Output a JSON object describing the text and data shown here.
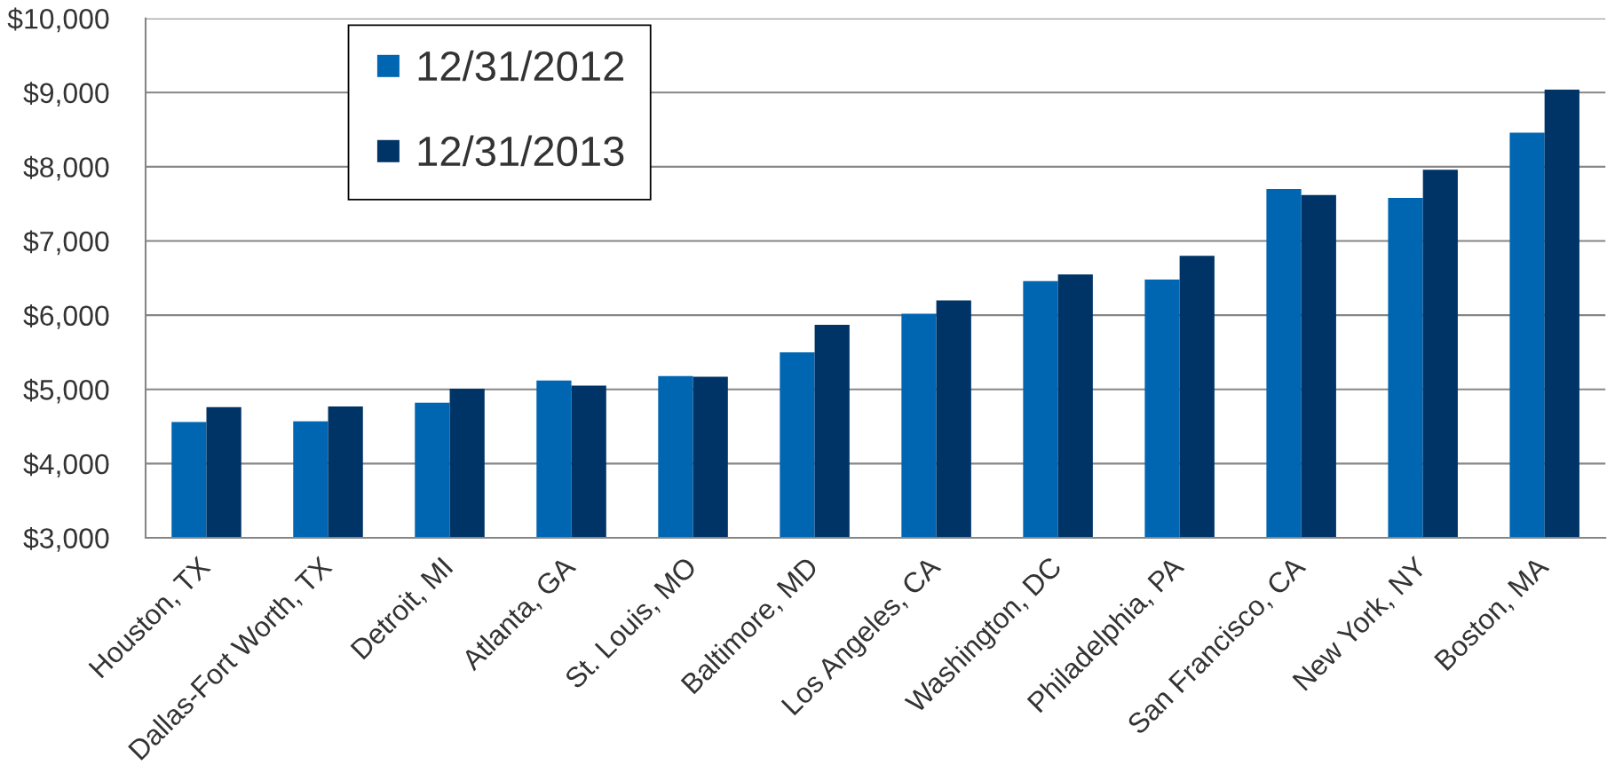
{
  "chart_data": {
    "type": "bar",
    "categories": [
      "Houston, TX",
      "Dallas-Fort Worth, TX",
      "Detroit, MI",
      "Atlanta, GA",
      "St. Louis, MO",
      "Baltimore, MD",
      "Los Angeles, CA",
      "Washington, DC",
      "Philadelphia, PA",
      "San Francisco, CA",
      "New York, NY",
      "Boston, MA"
    ],
    "series": [
      {
        "name": "12/31/2012",
        "color": "#0066b2",
        "values": [
          4560,
          4570,
          4820,
          5120,
          5180,
          5500,
          6020,
          6460,
          6480,
          7700,
          7580,
          8460
        ]
      },
      {
        "name": "12/31/2013",
        "color": "#003466",
        "values": [
          4760,
          4770,
          5010,
          5050,
          5170,
          5870,
          6200,
          6550,
          6800,
          7620,
          7960,
          9040
        ]
      }
    ],
    "ylim": [
      3000,
      10000
    ],
    "yticks": [
      {
        "value": 3000,
        "label": "$3,000"
      },
      {
        "value": 4000,
        "label": "$4,000"
      },
      {
        "value": 5000,
        "label": "$5,000"
      },
      {
        "value": 6000,
        "label": "$6,000"
      },
      {
        "value": 7000,
        "label": "$7,000"
      },
      {
        "value": 8000,
        "label": "$8,000"
      },
      {
        "value": 9000,
        "label": "$9,000"
      },
      {
        "value": 10000,
        "label": "$10,000"
      }
    ],
    "grid": "y",
    "legend": "top left"
  }
}
